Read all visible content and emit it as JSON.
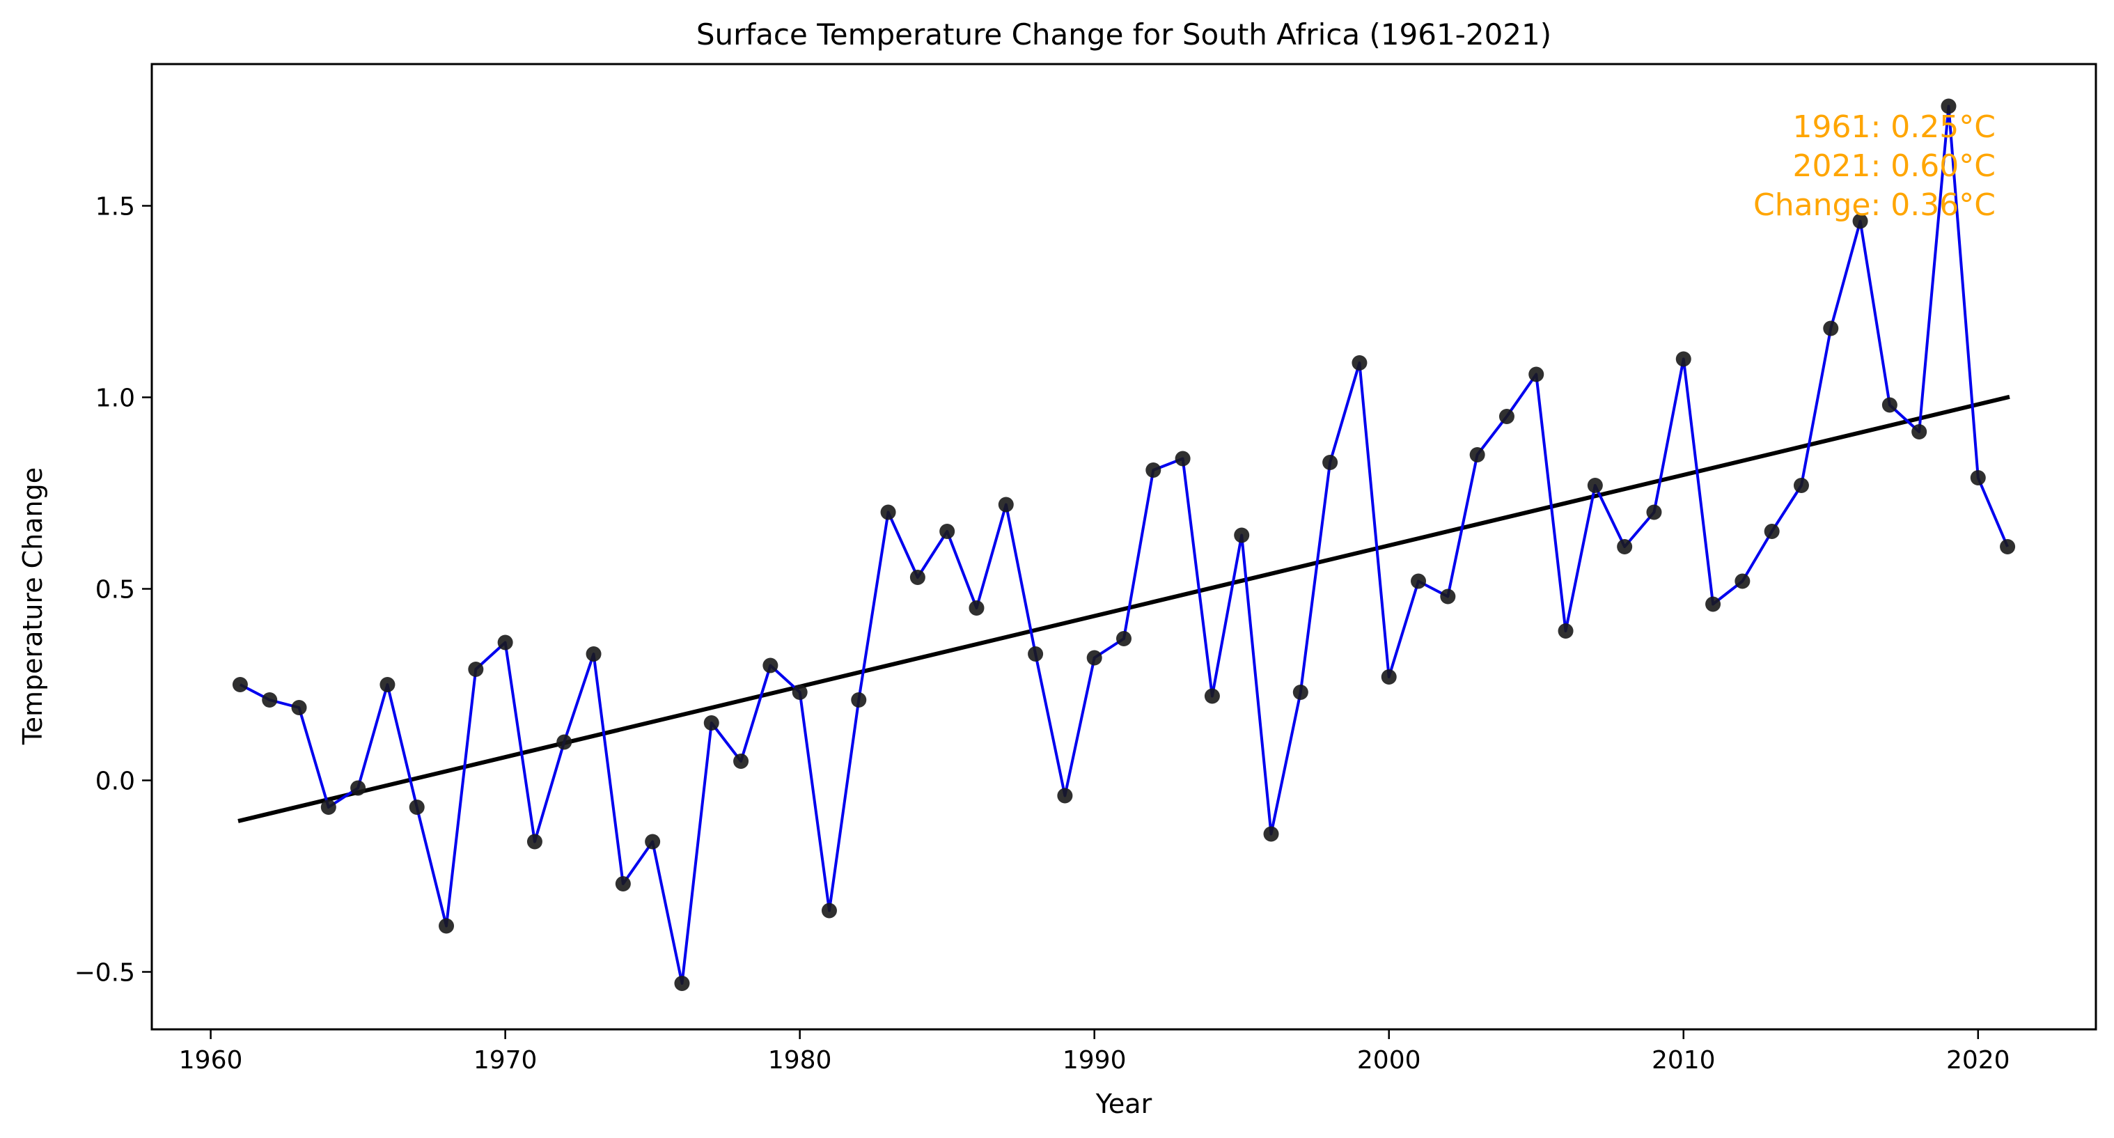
{
  "chart_data": {
    "type": "line",
    "title": "Surface Temperature Change for South Africa (1961-2021)",
    "xlabel": "Year",
    "ylabel": "Temperature Change",
    "xlim": [
      1958.0,
      2024.0
    ],
    "ylim": [
      -0.65,
      1.87
    ],
    "xticks": [
      1960,
      1970,
      1980,
      1990,
      2000,
      2010,
      2020
    ],
    "yticks": [
      -0.5,
      0.0,
      0.5,
      1.0,
      1.5
    ],
    "ytick_labels": [
      "−0.5",
      "0.0",
      "0.5",
      "1.0",
      "1.5"
    ],
    "grid": false,
    "series": [
      {
        "kind": "line_with_markers",
        "line_color": "#0000ee",
        "marker_color": "#1a1a1a",
        "x": [
          1961,
          1962,
          1963,
          1964,
          1965,
          1966,
          1967,
          1968,
          1969,
          1970,
          1971,
          1972,
          1973,
          1974,
          1975,
          1976,
          1977,
          1978,
          1979,
          1980,
          1981,
          1982,
          1983,
          1984,
          1985,
          1986,
          1987,
          1988,
          1989,
          1990,
          1991,
          1992,
          1993,
          1994,
          1995,
          1996,
          1997,
          1998,
          1999,
          2000,
          2001,
          2002,
          2003,
          2004,
          2005,
          2006,
          2007,
          2008,
          2009,
          2010,
          2011,
          2012,
          2013,
          2014,
          2015,
          2016,
          2017,
          2018,
          2019,
          2020,
          2021
        ],
        "y": [
          0.25,
          0.21,
          0.19,
          -0.07,
          -0.02,
          0.25,
          -0.07,
          -0.38,
          0.29,
          0.36,
          -0.16,
          0.1,
          0.33,
          -0.27,
          -0.16,
          -0.53,
          0.15,
          0.05,
          0.3,
          0.23,
          -0.34,
          0.21,
          0.7,
          0.53,
          0.65,
          0.45,
          0.72,
          0.33,
          -0.04,
          0.32,
          0.37,
          0.81,
          0.84,
          0.22,
          0.64,
          -0.14,
          0.23,
          0.83,
          1.09,
          0.27,
          0.52,
          0.48,
          0.85,
          0.95,
          1.06,
          0.39,
          0.77,
          0.61,
          0.7,
          1.1,
          0.46,
          0.52,
          0.65,
          0.77,
          1.18,
          1.46,
          0.98,
          0.91,
          1.76,
          0.79,
          0.61
        ]
      },
      {
        "kind": "trend_line",
        "line_color": "#000000",
        "x": [
          1961,
          2021
        ],
        "y": [
          -0.105,
          1.0
        ]
      }
    ],
    "annotation": {
      "lines": [
        "1961: 0.25°C",
        "2021: 0.60°C",
        "Change: 0.36°C"
      ],
      "color": "#ffa500",
      "placement": "top-right"
    }
  }
}
